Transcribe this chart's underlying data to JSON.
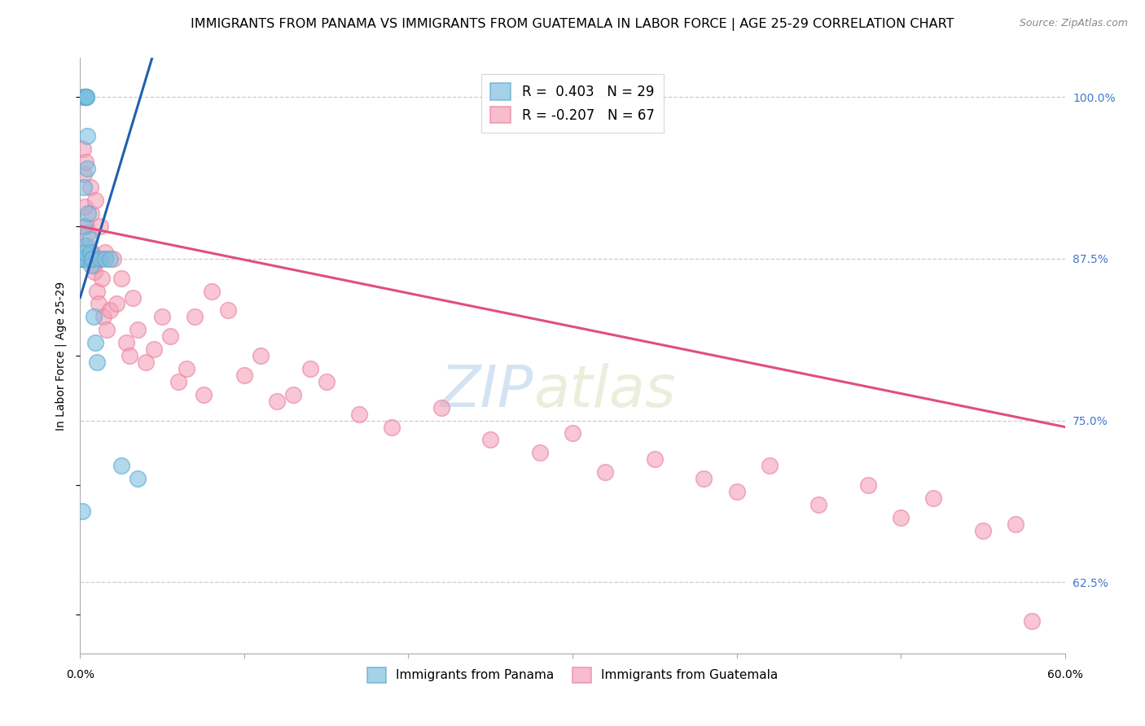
{
  "title": "IMMIGRANTS FROM PANAMA VS IMMIGRANTS FROM GUATEMALA IN LABOR FORCE | AGE 25-29 CORRELATION CHART",
  "source": "Source: ZipAtlas.com",
  "ylabel": "In Labor Force | Age 25-29",
  "right_yticks": [
    100.0,
    87.5,
    75.0,
    62.5
  ],
  "right_ytick_labels": [
    "100.0%",
    "87.5%",
    "75.0%",
    "62.5%"
  ],
  "bottom_xtick_left": "0.0%",
  "bottom_xtick_right": "60.0%",
  "xlim": [
    0.0,
    60.0
  ],
  "ylim": [
    57.0,
    103.0
  ],
  "legend_blue_r": "R =  0.403",
  "legend_blue_n": "N = 29",
  "legend_pink_r": "R = -0.207",
  "legend_pink_n": "N = 67",
  "blue_color": "#7fbfdf",
  "pink_color": "#f4a0b8",
  "blue_edge_color": "#5aaad0",
  "pink_edge_color": "#e880a0",
  "blue_line_color": "#2060b0",
  "pink_line_color": "#e0507a",
  "watermark_zip": "ZIP",
  "watermark_atlas": "atlas",
  "gridline_color": "#cccccc",
  "title_fontsize": 11.5,
  "axis_label_fontsize": 10,
  "tick_fontsize": 10,
  "source_fontsize": 9,
  "panama_x": [
    0.15,
    0.15,
    0.18,
    0.2,
    0.22,
    0.25,
    0.28,
    0.3,
    0.3,
    0.32,
    0.35,
    0.38,
    0.4,
    0.42,
    0.45,
    0.5,
    0.55,
    0.6,
    0.65,
    0.7,
    0.8,
    0.9,
    1.0,
    1.2,
    1.5,
    1.8,
    2.5,
    3.5,
    0.12
  ],
  "panama_y": [
    87.5,
    87.5,
    87.5,
    87.5,
    93.0,
    90.0,
    88.5,
    88.0,
    100.0,
    100.0,
    100.0,
    100.0,
    100.0,
    97.0,
    94.5,
    91.0,
    89.0,
    88.0,
    87.0,
    87.5,
    83.0,
    81.0,
    79.5,
    87.5,
    87.5,
    87.5,
    71.5,
    70.5,
    68.0
  ],
  "guatemala_x": [
    0.15,
    0.2,
    0.25,
    0.3,
    0.35,
    0.4,
    0.45,
    0.5,
    0.55,
    0.6,
    0.65,
    0.7,
    0.75,
    0.8,
    0.85,
    0.9,
    1.0,
    1.1,
    1.2,
    1.3,
    1.4,
    1.5,
    1.6,
    1.8,
    2.0,
    2.2,
    2.5,
    2.8,
    3.0,
    3.2,
    3.5,
    4.0,
    4.5,
    5.0,
    5.5,
    6.0,
    6.5,
    7.0,
    7.5,
    8.0,
    9.0,
    10.0,
    11.0,
    12.0,
    13.0,
    14.0,
    15.0,
    17.0,
    19.0,
    22.0,
    25.0,
    28.0,
    30.0,
    32.0,
    35.0,
    38.0,
    40.0,
    42.0,
    45.0,
    48.0,
    50.0,
    52.0,
    55.0,
    57.0,
    58.0,
    1.0,
    0.3
  ],
  "guatemala_y": [
    100.0,
    96.0,
    94.0,
    91.5,
    95.0,
    90.0,
    88.5,
    89.5,
    87.5,
    93.0,
    91.0,
    88.0,
    87.5,
    87.0,
    86.5,
    92.0,
    85.0,
    84.0,
    90.0,
    86.0,
    83.0,
    88.0,
    82.0,
    83.5,
    87.5,
    84.0,
    86.0,
    81.0,
    80.0,
    84.5,
    82.0,
    79.5,
    80.5,
    83.0,
    81.5,
    78.0,
    79.0,
    83.0,
    77.0,
    85.0,
    83.5,
    78.5,
    80.0,
    76.5,
    77.0,
    79.0,
    78.0,
    75.5,
    74.5,
    76.0,
    73.5,
    72.5,
    74.0,
    71.0,
    72.0,
    70.5,
    69.5,
    71.5,
    68.5,
    70.0,
    67.5,
    69.0,
    66.5,
    67.0,
    59.5,
    87.5,
    87.5
  ],
  "blue_trend_x": [
    0.0,
    4.5
  ],
  "blue_trend_y": [
    84.5,
    103.5
  ],
  "pink_trend_x": [
    0.0,
    60.0
  ],
  "pink_trend_y": [
    90.0,
    74.5
  ],
  "xticks_bottom": [
    0.0,
    10.0,
    20.0,
    30.0,
    40.0,
    50.0,
    60.0
  ],
  "xtick_labels_bottom": [
    "",
    "",
    "",
    "",
    "",
    "",
    ""
  ]
}
